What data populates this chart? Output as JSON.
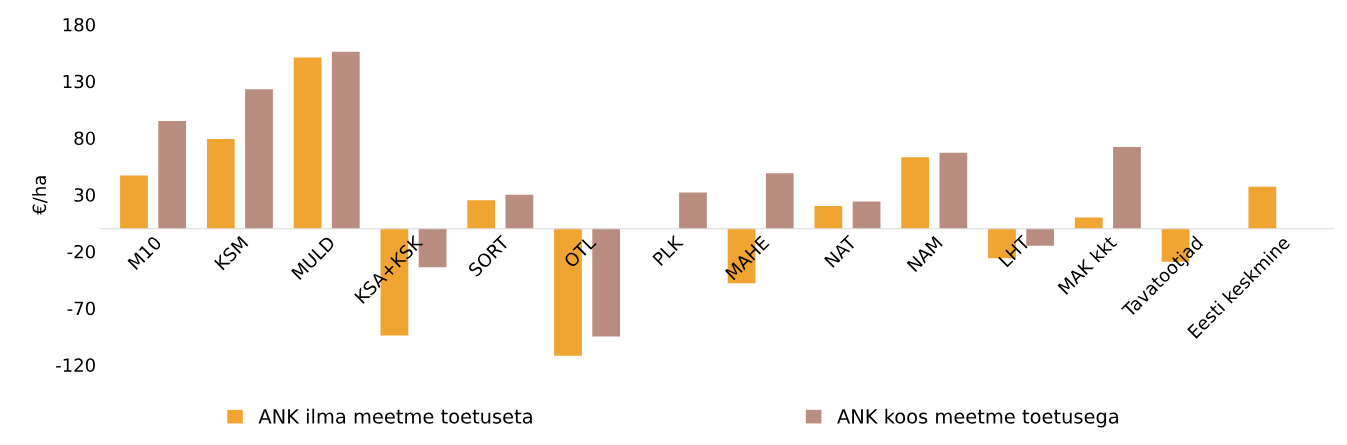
{
  "chart_data": {
    "type": "bar",
    "ylabel": "€/ha",
    "categories": [
      "M10",
      "KSM",
      "MULD",
      "KSA+KSK",
      "SORT",
      "OTL",
      "PLK",
      "MAHE",
      "NAT",
      "NAM",
      "LHT",
      "MAK kkt",
      "Tavatootjad",
      "Eesti keskmine"
    ],
    "series": [
      {
        "name": "ANK ilma meetme toetuseta",
        "color": "#f0a432",
        "values": [
          47,
          79,
          151,
          -94,
          25,
          -112,
          null,
          -48,
          20,
          63,
          -26,
          10,
          -29,
          37
        ]
      },
      {
        "name": "ANK koos meetme toetusega",
        "color": "#b98e80",
        "values": [
          95,
          123,
          156,
          -34,
          30,
          -95,
          32,
          49,
          24,
          67,
          -15,
          72,
          null,
          null
        ]
      }
    ],
    "ylim": [
      -120,
      180
    ],
    "yticks": [
      -120,
      -70,
      -20,
      30,
      80,
      130,
      180
    ],
    "grid": false,
    "legend": "bottom"
  }
}
